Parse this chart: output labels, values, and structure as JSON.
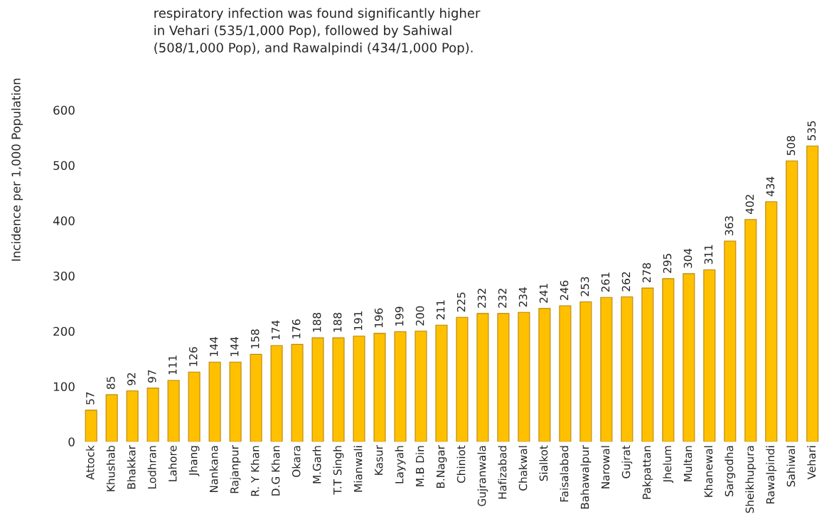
{
  "chart_data": {
    "type": "bar",
    "ylabel": "Incidence per 1,000 Population",
    "annotations": [
      "respiratory infection was found significantly higher\nin Vehari (535/1,000 Pop), followed by Sahiwal\n(508/1,000 Pop), and Rawalpindi (434/1,000 Pop)."
    ],
    "categories": [
      "Attock",
      "Khushab",
      "Bhakkar",
      "Lodhran",
      "Lahore",
      "Jhang",
      "Nankana",
      "Rajanpur",
      "R. Y Khan",
      "D.G Khan",
      "Okara",
      "M.Garh",
      "T.T Singh",
      "Mianwali",
      "Kasur",
      "Layyah",
      "M.B Din",
      "B.Nagar",
      "Chiniot",
      "Gujranwala",
      "Hafizabad",
      "Chakwal",
      "Sialkot",
      "Faisalabad",
      "Bahawalpur",
      "Narowal",
      "Gujrat",
      "Pakpattan",
      "Jhelum",
      "Multan",
      "Khanewal",
      "Sargodha",
      "Sheikhupura",
      "Rawalpindi",
      "Sahiwal",
      "Vehari"
    ],
    "values": [
      57,
      85,
      92,
      97,
      111,
      126,
      144,
      144,
      158,
      174,
      176,
      188,
      188,
      191,
      196,
      199,
      200,
      211,
      225,
      232,
      232,
      234,
      241,
      246,
      253,
      261,
      262,
      278,
      295,
      304,
      311,
      363,
      402,
      434,
      508,
      535
    ],
    "color": "#ffc000",
    "ylim": [
      0,
      600
    ],
    "yticks": [
      0,
      100,
      200,
      300,
      400,
      500,
      600
    ],
    "data_labels": true,
    "grid": false,
    "legend": false
  }
}
